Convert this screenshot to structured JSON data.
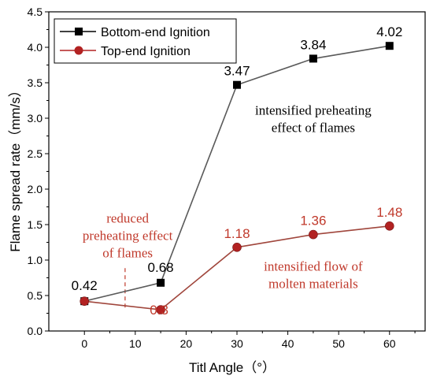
{
  "chart_data": {
    "type": "line",
    "xlabel": "Titl Angle（°）",
    "ylabel": "Flame spread rate（mm/s）",
    "xlim": [
      -7,
      67
    ],
    "ylim": [
      0,
      4.5
    ],
    "xticks": [
      0,
      10,
      20,
      30,
      40,
      50,
      60
    ],
    "yticks": [
      0.0,
      0.5,
      1.0,
      1.5,
      2.0,
      2.5,
      3.0,
      3.5,
      4.0,
      4.5
    ],
    "ytick_labels": [
      "0.0",
      "0.5",
      "1.0",
      "1.5",
      "2.0",
      "2.5",
      "3.0",
      "3.5",
      "4.0",
      "4.5"
    ],
    "legend_position": "top-left",
    "series": [
      {
        "name": "Bottom-end Ignition",
        "color": "#000000",
        "marker": "square",
        "x": [
          0,
          15,
          30,
          45,
          60
        ],
        "y": [
          0.42,
          0.68,
          3.47,
          3.84,
          4.02
        ],
        "labels": [
          "0.42",
          "0.68",
          "3.47",
          "3.84",
          "4.02"
        ],
        "line_color": "#5a5a5a",
        "label_color": "#000000"
      },
      {
        "name": "Top-end Ignition",
        "color": "#b22222",
        "marker": "circle",
        "x": [
          0,
          15,
          30,
          45,
          60
        ],
        "y": [
          0.42,
          0.3,
          1.18,
          1.36,
          1.48
        ],
        "labels": [
          "",
          "0.3",
          "1.18",
          "1.36",
          "1.48"
        ],
        "line_color": "#a0463c",
        "label_color": "#c0392b"
      }
    ],
    "annotations": [
      {
        "lines": [
          "intensified preheating",
          "effect of flames"
        ],
        "x": 45,
        "y": 3.05,
        "color": "#000000"
      },
      {
        "lines": [
          "reduced",
          "preheating effect",
          "of flames"
        ],
        "x": 8.5,
        "y": 1.53,
        "color": "#c0392b"
      },
      {
        "lines": [
          "intensified flow of",
          "molten materials"
        ],
        "x": 45,
        "y": 0.85,
        "color": "#c0392b"
      }
    ],
    "divider": {
      "x": 8,
      "y_from": 0.33,
      "y_to": 0.92,
      "color": "#c0392b"
    }
  }
}
